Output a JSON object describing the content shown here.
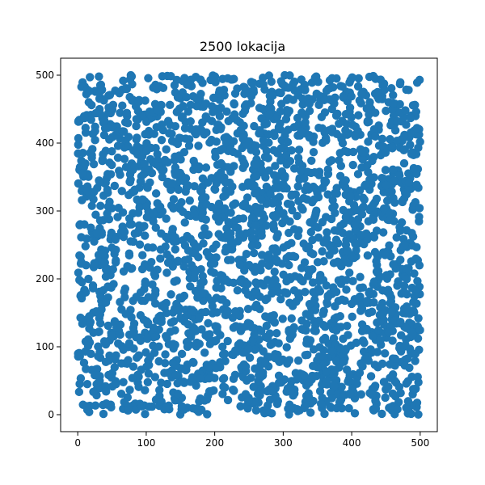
{
  "chart_data": {
    "type": "scatter",
    "title": "2500 lokacija",
    "xlabel": "",
    "ylabel": "",
    "xlim": [
      -25,
      525
    ],
    "ylim": [
      -25,
      525
    ],
    "xticks": [
      0,
      100,
      200,
      300,
      400,
      500
    ],
    "yticks": [
      0,
      100,
      200,
      300,
      400,
      500
    ],
    "grid": false,
    "legend": false,
    "series": [
      {
        "color": "#1f77b4",
        "count": 2500,
        "generator": {
          "kind": "uniform",
          "xmin": 0,
          "xmax": 500,
          "ymin": 0,
          "ymax": 500,
          "seed": 12345
        }
      }
    ]
  }
}
